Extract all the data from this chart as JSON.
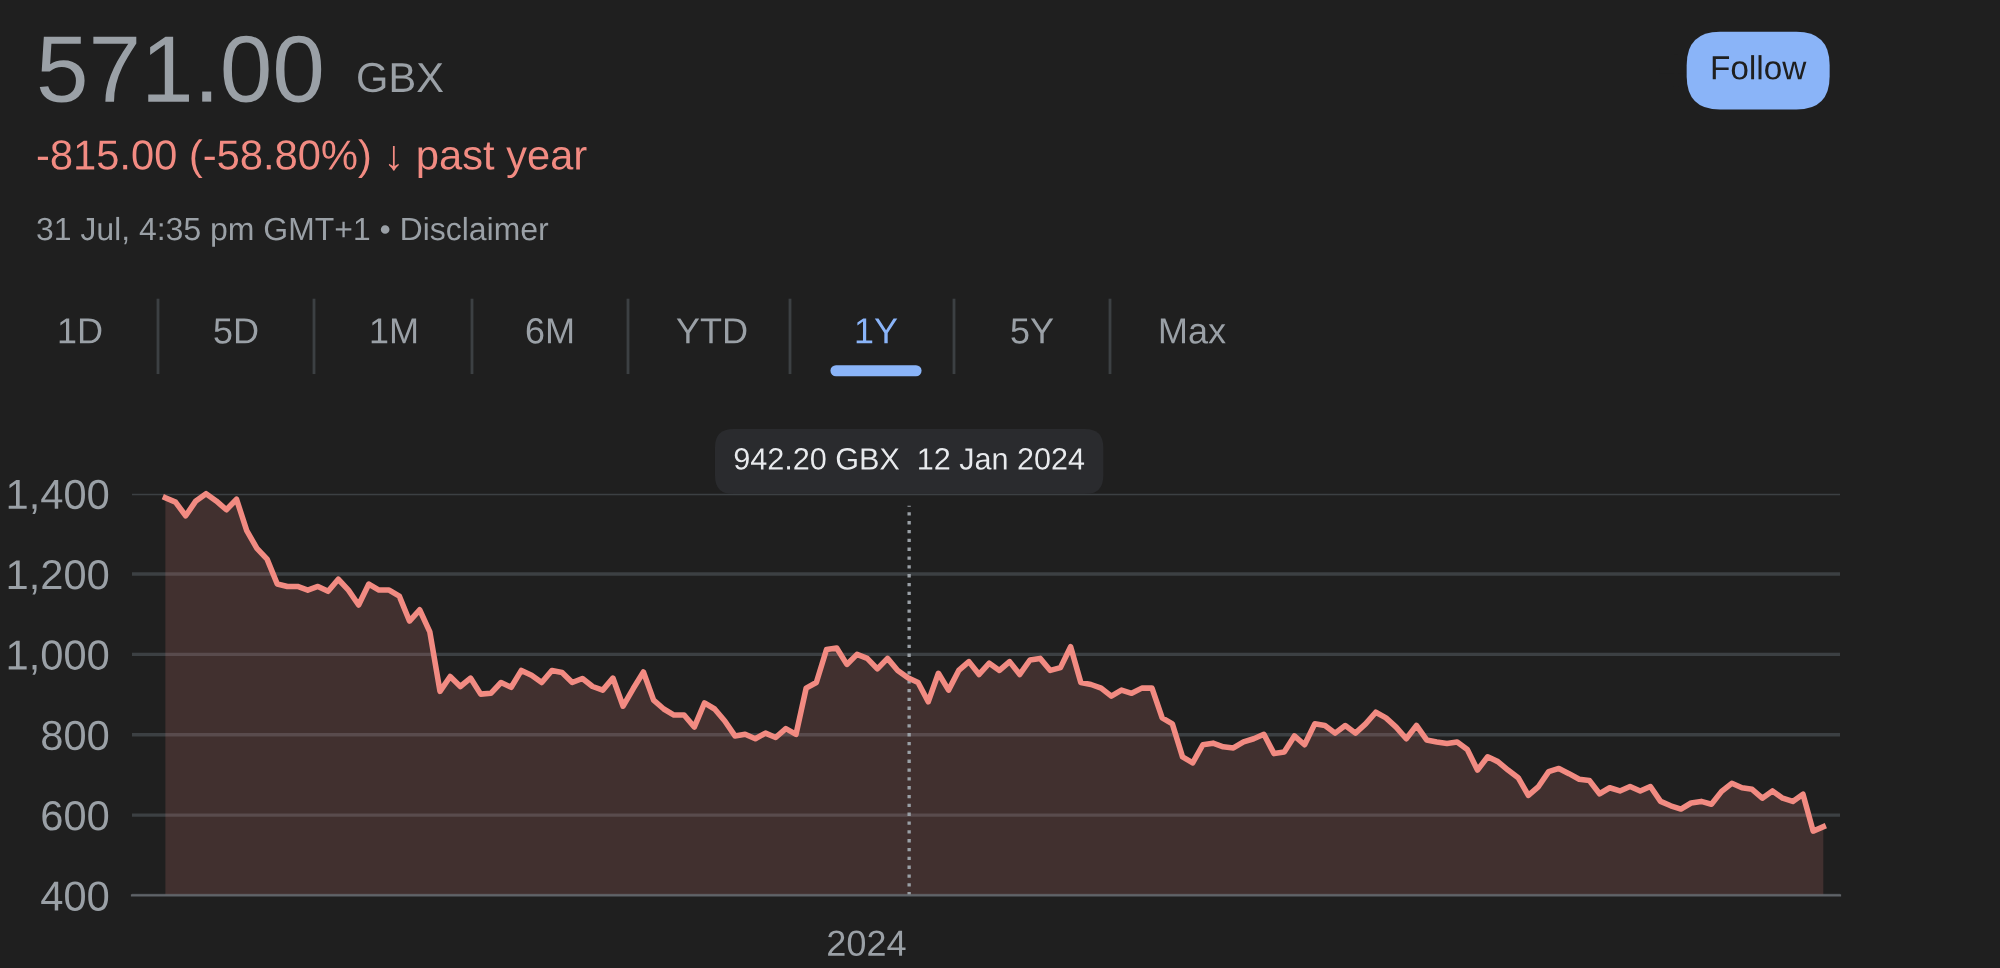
{
  "chart_data": {
    "type": "area",
    "title": "571.00",
    "subtitle": "-815.00 (-58.80%) ↓ past year",
    "annotations": [
      "GBX",
      "31 Jul, 4:35 pm GMT+1 • Disclaimer",
      "Follow",
      "1D",
      "5D",
      "1M",
      "6M",
      "YTD",
      "1Y",
      "5Y",
      "Max",
      "942.20 GBX  12 Jan 2024",
      "2024"
    ],
    "categories": [
      null,
      null,
      null,
      null,
      null,
      null,
      null,
      null,
      null,
      null,
      null,
      null,
      null,
      null,
      null,
      null,
      null,
      null,
      null,
      null,
      null,
      null,
      null,
      null,
      null,
      null,
      null,
      null,
      null,
      null,
      null,
      null,
      null,
      null,
      null,
      null,
      null,
      null,
      null,
      null,
      null,
      null,
      null,
      null,
      null,
      null,
      null,
      null,
      null,
      null,
      null,
      null,
      null,
      null,
      null,
      null,
      null,
      null,
      null,
      null,
      null,
      null,
      null,
      null,
      null,
      null,
      null,
      null,
      null,
      null,
      null,
      null,
      null,
      null,
      null,
      null,
      null,
      null,
      null,
      null,
      null,
      null,
      null,
      null,
      null,
      null,
      null,
      null,
      null,
      null,
      null,
      null,
      null,
      null,
      null,
      null,
      null,
      null,
      null,
      null,
      null,
      null,
      null,
      null,
      null,
      null,
      null,
      null,
      null,
      null,
      null,
      null,
      null,
      null,
      null,
      null,
      null,
      null,
      null,
      null,
      null,
      null,
      null,
      null,
      null,
      null,
      null,
      null,
      null,
      null,
      null,
      null,
      null,
      null,
      null,
      null,
      null,
      null,
      null,
      null,
      null,
      null,
      null,
      null,
      null,
      null,
      null,
      null,
      null,
      null,
      null,
      null,
      null,
      null,
      null,
      null,
      null,
      null,
      null,
      null,
      null,
      null,
      null,
      null
    ],
    "series": [
      {
        "color": "#f28b82",
        "values": [
          1390,
          1379,
          1345,
          1382,
          1400,
          1382,
          1360,
          1386,
          1308,
          1264,
          1237,
          1175,
          1169,
          1169,
          1160,
          1169,
          1157,
          1187,
          1160,
          1123,
          1175,
          1160,
          1160,
          1145,
          1083,
          1111,
          1056,
          908,
          945,
          920,
          941,
          901,
          903,
          930,
          918,
          960,
          948,
          930,
          960,
          955,
          930,
          940,
          920,
          911,
          941,
          871,
          915,
          956,
          886,
          864,
          849,
          849,
          819,
          879,
          864,
          834,
          797,
          801,
          790,
          804,
          793,
          815,
          801,
          916,
          930,
          1012,
          1016,
          975,
          1000,
          990,
          964,
          990,
          960,
          942,
          930,
          882,
          953,
          911,
          960,
          982,
          950,
          978,
          960,
          982,
          950,
          986,
          990,
          960,
          967,
          1019,
          930,
          925,
          916,
          896,
          911,
          903,
          916,
          916,
          842,
          827,
          745,
          730,
          775,
          779,
          770,
          767,
          782,
          790,
          801,
          753,
          757,
          797,
          775,
          827,
          823,
          804,
          823,
          804,
          827,
          856,
          842,
          819,
          790,
          823,
          787,
          782,
          778,
          782,
          763,
          712,
          745,
          733,
          712,
          693,
          649,
          671,
          708,
          716,
          703,
          689,
          686,
          653,
          668,
          660,
          671,
          660,
          671,
          634,
          623,
          615,
          630,
          634,
          627,
          659,
          679,
          668,
          664,
          642,
          660,
          642,
          634,
          652,
          560,
          571
        ]
      }
    ],
    "ylim": [
      400,
      1400
    ],
    "yticks": [
      {
        "value": 400,
        "label": "400"
      },
      {
        "value": 600,
        "label": "600"
      },
      {
        "value": 800,
        "label": "800"
      },
      {
        "value": 1000,
        "label": "1,000"
      },
      {
        "value": 1200,
        "label": "1,200"
      },
      {
        "value": 1400,
        "label": "1,400"
      }
    ],
    "grid": "y"
  }
}
